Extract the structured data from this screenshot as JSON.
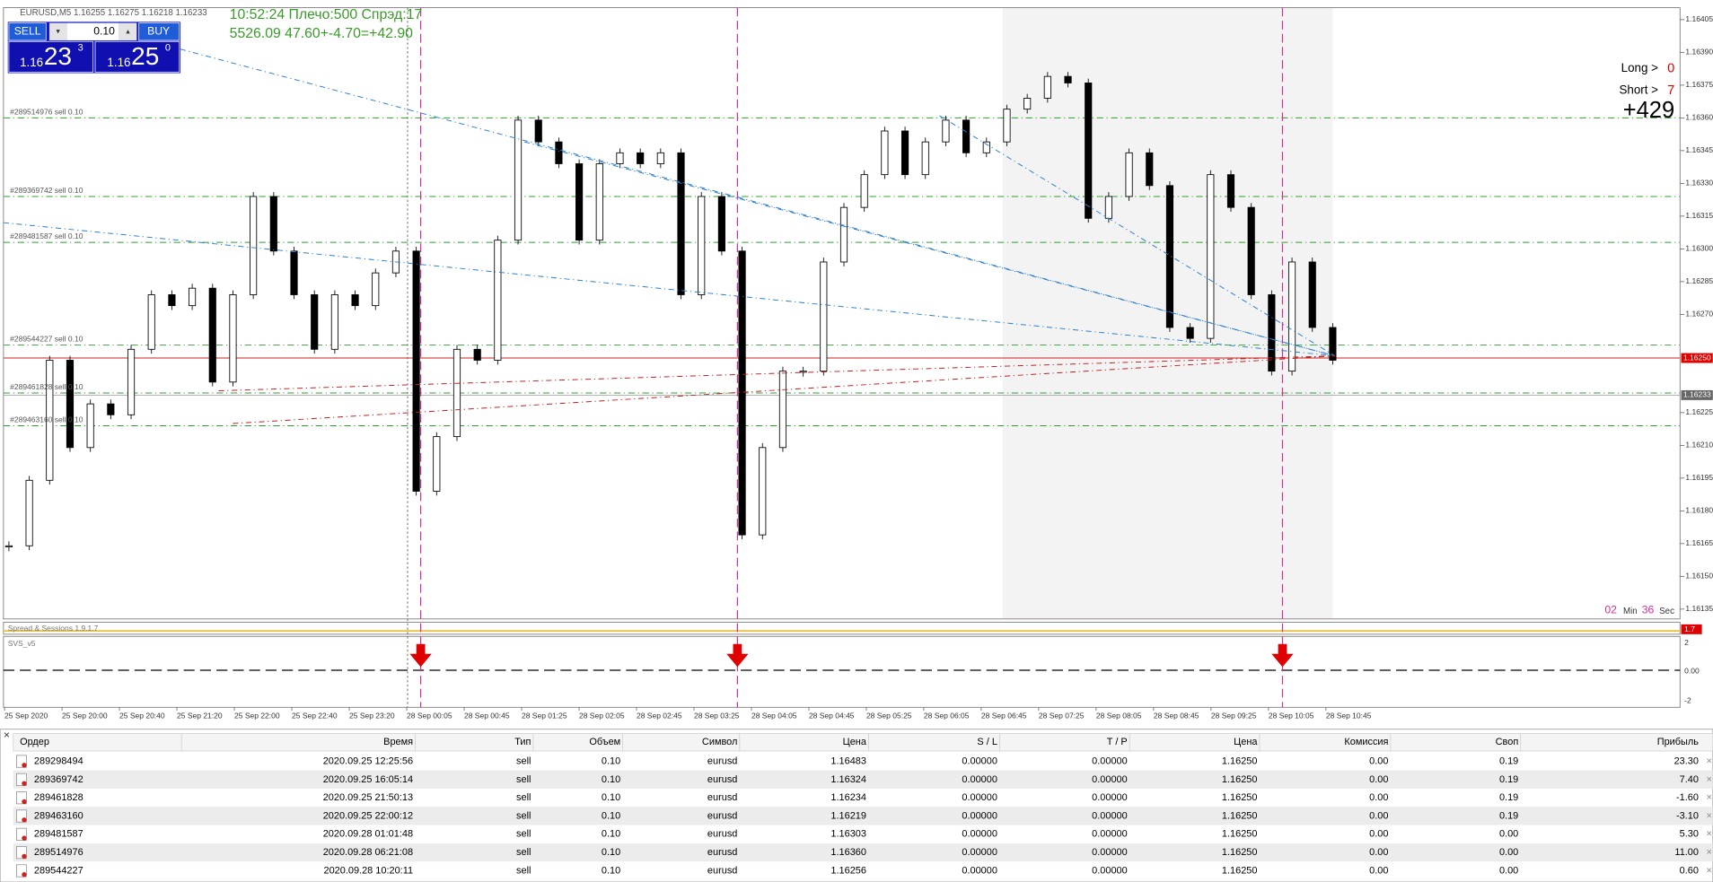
{
  "header": {
    "symbol_info": "EURUSD,M5  1.16255 1.16275 1.16218 1.16233",
    "sell_label": "SELL",
    "buy_label": "BUY",
    "lot": "0.10",
    "sell_big": "1.16",
    "sell_pips": "23",
    "sell_point": "3",
    "buy_big": "1.16",
    "buy_pips": "25",
    "buy_point": "0"
  },
  "info": {
    "line1": "10:52:24 Плечо:500 Спрэд:17",
    "line2": "5526.09   47.60+-4.70=+42.90"
  },
  "stats": {
    "long_label": "Long >",
    "long_value": "0",
    "short_label": "Short >",
    "short_value": "7",
    "total": "+429"
  },
  "timer": {
    "minutes": "02",
    "min_label": "Min",
    "seconds": "36",
    "sec_label": "Sec"
  },
  "chart": {
    "ylim": [
      1.16135,
      1.16405
    ],
    "price_ticks": [
      {
        "value": 1.16405,
        "label": "1.16405"
      },
      {
        "value": 1.1639,
        "label": "1.16390"
      },
      {
        "value": 1.16375,
        "label": "1.16375"
      },
      {
        "value": 1.1636,
        "label": "1.16360"
      },
      {
        "value": 1.16345,
        "label": "1.16345"
      },
      {
        "value": 1.1633,
        "label": "1.16330"
      },
      {
        "value": 1.16315,
        "label": "1.16315"
      },
      {
        "value": 1.163,
        "label": "1.16300"
      },
      {
        "value": 1.16285,
        "label": "1.16285"
      },
      {
        "value": 1.1627,
        "label": "1.16270"
      },
      {
        "value": 1.16225,
        "label": "1.16225"
      },
      {
        "value": 1.1621,
        "label": "1.16210"
      },
      {
        "value": 1.16195,
        "label": "1.16195"
      },
      {
        "value": 1.1618,
        "label": "1.16180"
      },
      {
        "value": 1.16165,
        "label": "1.16165"
      },
      {
        "value": 1.1615,
        "label": "1.16150"
      },
      {
        "value": 1.16135,
        "label": "1.16135"
      }
    ],
    "bid": {
      "value": 1.1625,
      "label": "1.16250"
    },
    "ask": {
      "value": 1.16233,
      "label": "1.16233"
    },
    "time_labels": [
      "25 Sep 2020",
      "25 Sep 20:00",
      "25 Sep 20:40",
      "25 Sep 21:20",
      "25 Sep 22:00",
      "25 Sep 22:40",
      "25 Sep 23:20",
      "28 Sep 00:05",
      "28 Sep 00:45",
      "28 Sep 01:25",
      "28 Sep 02:05",
      "28 Sep 02:45",
      "28 Sep 03:25",
      "28 Sep 04:05",
      "28 Sep 04:45",
      "28 Sep 05:25",
      "28 Sep 06:05",
      "28 Sep 06:45",
      "28 Sep 07:25",
      "28 Sep 08:05",
      "28 Sep 08:45",
      "28 Sep 09:25",
      "28 Sep 10:05",
      "28 Sep 10:45"
    ],
    "closes": [
      1.16164,
      1.16194,
      1.16249,
      1.16209,
      1.16229,
      1.16224,
      1.16254,
      1.16279,
      1.16274,
      1.16282,
      1.16239,
      1.16279,
      1.16324,
      1.16299,
      1.16279,
      1.16254,
      1.16279,
      1.16274,
      1.16289,
      1.16299,
      1.16189,
      1.16214,
      1.16254,
      1.16249,
      1.16304,
      1.16359,
      1.16349,
      1.16339,
      1.16304,
      1.16339,
      1.16344,
      1.16339,
      1.16344,
      1.16279,
      1.16324,
      1.16299,
      1.16169,
      1.16209,
      1.16244,
      1.16244,
      1.16294,
      1.16319,
      1.16334,
      1.16354,
      1.16334,
      1.16349,
      1.16359,
      1.16344,
      1.16349,
      1.16364,
      1.16369,
      1.16379,
      1.16376,
      1.16314,
      1.16324,
      1.16344,
      1.16329,
      1.16264,
      1.16259,
      1.16334,
      1.16319,
      1.16279,
      1.16244,
      1.16294,
      1.16264,
      1.16249
    ],
    "orders": [
      {
        "label": "#289514976 sell 0.10",
        "price": 1.1636
      },
      {
        "label": "#289369742 sell 0.10",
        "price": 1.16324
      },
      {
        "label": "#289481587 sell 0.10",
        "price": 1.16303
      },
      {
        "label": "#289544227 sell 0.10",
        "price": 1.16256
      },
      {
        "label": "#289461828 sell 0.10",
        "price": 1.16234
      },
      {
        "label": "#289463160 sell 0.10",
        "price": 1.16219
      }
    ]
  },
  "indicators": {
    "spread_name": "Spread & Sessions 1.9.1.7",
    "spread_value": "1.7",
    "svs_name": "SVS_v5",
    "levels": [
      "2",
      "0.00",
      "-2"
    ]
  },
  "table": {
    "header": [
      "Ордер",
      "Время",
      "Тип",
      "Объем",
      "Символ",
      "Цена",
      "S / L",
      "T / P",
      "Цена",
      "Комиссия",
      "Своп",
      "Прибыль"
    ],
    "rows": [
      [
        "289298494",
        "2020.09.25 12:25:56",
        "sell",
        "0.10",
        "eurusd",
        "1.16483",
        "0.00000",
        "0.00000",
        "1.16250",
        "0.00",
        "0.19",
        "23.30"
      ],
      [
        "289369742",
        "2020.09.25 16:05:14",
        "sell",
        "0.10",
        "eurusd",
        "1.16324",
        "0.00000",
        "0.00000",
        "1.16250",
        "0.00",
        "0.19",
        "7.40"
      ],
      [
        "289461828",
        "2020.09.25 21:50:13",
        "sell",
        "0.10",
        "eurusd",
        "1.16234",
        "0.00000",
        "0.00000",
        "1.16250",
        "0.00",
        "0.19",
        "-1.60"
      ],
      [
        "289463160",
        "2020.09.25 22:00:12",
        "sell",
        "0.10",
        "eurusd",
        "1.16219",
        "0.00000",
        "0.00000",
        "1.16250",
        "0.00",
        "0.19",
        "-3.10"
      ],
      [
        "289481587",
        "2020.09.28 01:01:48",
        "sell",
        "0.10",
        "eurusd",
        "1.16303",
        "0.00000",
        "0.00000",
        "1.16250",
        "0.00",
        "0.00",
        "5.30"
      ],
      [
        "289514976",
        "2020.09.28 06:21:08",
        "sell",
        "0.10",
        "eurusd",
        "1.16360",
        "0.00000",
        "0.00000",
        "1.16250",
        "0.00",
        "0.00",
        "11.00"
      ],
      [
        "289544227",
        "2020.09.28 10:20:11",
        "sell",
        "0.10",
        "eurusd",
        "1.16256",
        "0.00000",
        "0.00000",
        "1.16250",
        "0.00",
        "0.00",
        "0.60"
      ]
    ]
  }
}
